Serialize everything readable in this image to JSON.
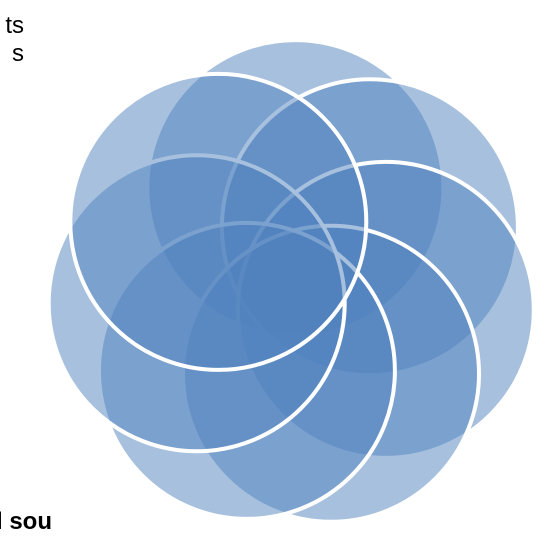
{
  "text_fragments": {
    "top_line_1": "ts",
    "top_line_2": "s",
    "bottom_line": "l sou"
  },
  "diagram": {
    "type": "overlapping-circle-rosette",
    "circle_count": 7,
    "fill_color": "#4f81bd",
    "outline_color": "#ffffff"
  }
}
